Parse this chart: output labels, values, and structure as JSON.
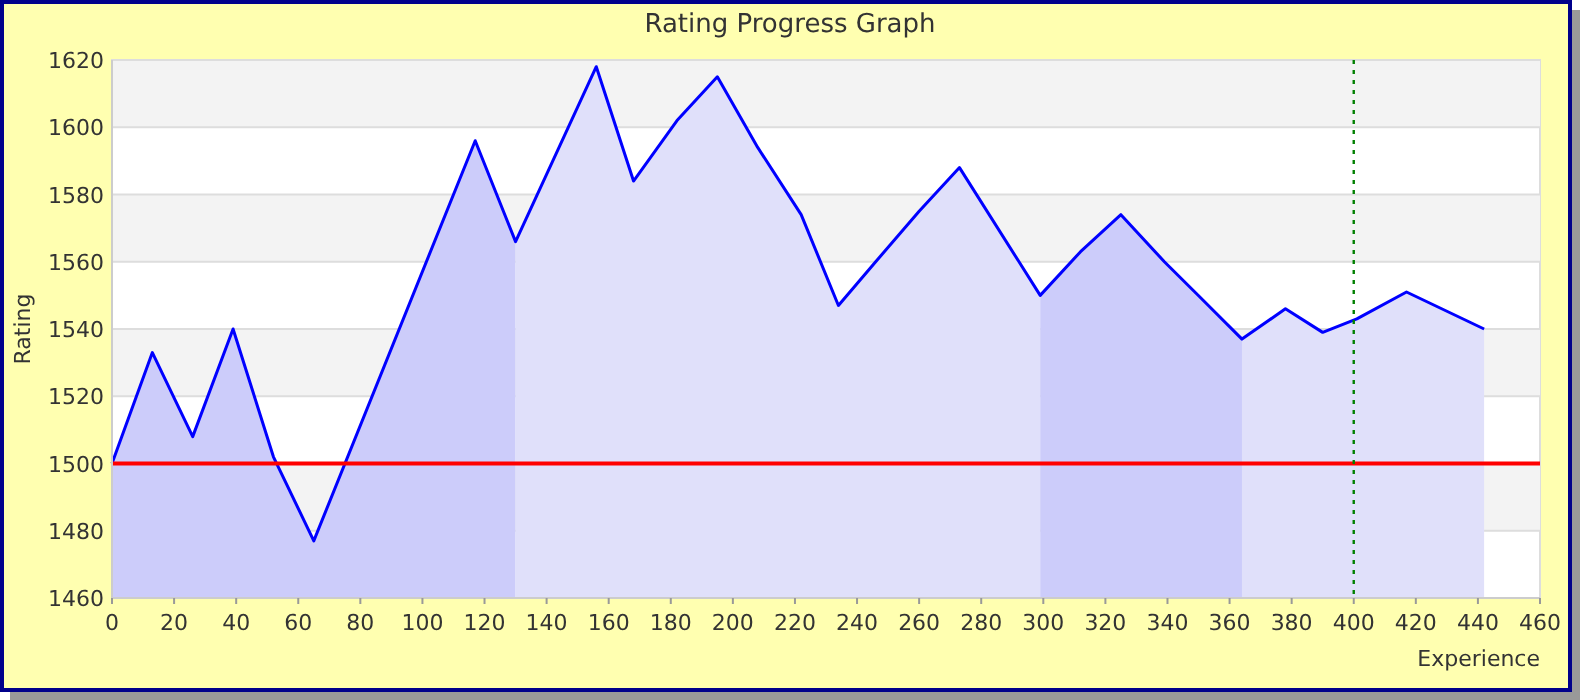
{
  "chart_data": {
    "type": "area",
    "title": "Rating Progress Graph",
    "xlabel": "Experience",
    "ylabel": "Rating",
    "xlim": [
      0,
      460
    ],
    "xticks": [
      0,
      20,
      40,
      60,
      80,
      100,
      120,
      140,
      160,
      180,
      200,
      220,
      240,
      260,
      280,
      300,
      320,
      340,
      360,
      380,
      400,
      420,
      440,
      460
    ],
    "ylim": [
      1460,
      1620
    ],
    "yticks": [
      1460,
      1480,
      1500,
      1520,
      1540,
      1560,
      1580,
      1600,
      1620
    ],
    "grid": "y",
    "series": [
      {
        "color": "#ccccfa",
        "x": [
          0,
          13,
          26,
          39,
          52,
          65,
          117,
          130
        ],
        "values": [
          1500,
          1533,
          1508,
          1540,
          1502,
          1477,
          1596,
          1566
        ]
      },
      {
        "color": "#e0e0fa",
        "x": [
          130,
          156,
          168,
          182,
          195,
          208,
          222,
          234,
          246,
          260,
          273,
          299
        ],
        "values": [
          1566,
          1618,
          1584,
          1602,
          1615,
          1594,
          1574,
          1547,
          1560,
          1575,
          1588,
          1550
        ]
      },
      {
        "color": "#ccccfa",
        "x": [
          299,
          312,
          325,
          339,
          351,
          364
        ],
        "values": [
          1550,
          1563,
          1574,
          1560,
          1549,
          1537
        ]
      },
      {
        "color": "#e0e0fa",
        "x": [
          364,
          378,
          390,
          401,
          417,
          442
        ],
        "values": [
          1537,
          1546,
          1539,
          1543,
          1551,
          1540
        ]
      },
      {
        "type": "line",
        "color": "#0000ff",
        "x": [
          0,
          13,
          26,
          39,
          52,
          65,
          117,
          130,
          156,
          168,
          182,
          195,
          208,
          222,
          234,
          246,
          260,
          273,
          299,
          312,
          325,
          339,
          351,
          364,
          378,
          390,
          401,
          417,
          442
        ],
        "values": [
          1500,
          1533,
          1508,
          1540,
          1502,
          1477,
          1596,
          1566,
          1618,
          1584,
          1602,
          1615,
          1594,
          1574,
          1547,
          1560,
          1575,
          1588,
          1550,
          1563,
          1574,
          1560,
          1549,
          1537,
          1546,
          1539,
          1543,
          1551,
          1540
        ]
      }
    ],
    "ref_lines": [
      {
        "axis": "y",
        "value": 1500,
        "color": "#ff0000",
        "line_style": "solid"
      },
      {
        "axis": "x",
        "value": 400,
        "color": "#008000",
        "line_style": "dotted"
      }
    ]
  }
}
